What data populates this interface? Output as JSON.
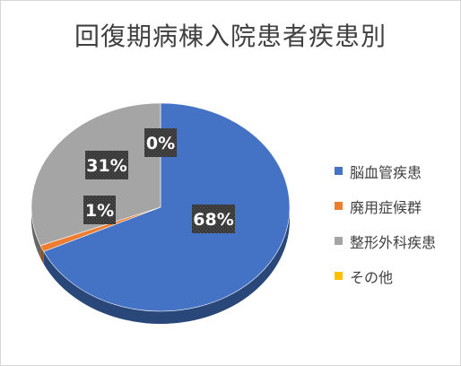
{
  "chart_data": {
    "type": "pie",
    "title": "回復期病棟入院患者疾患別",
    "categories": [
      "脳血管疾患",
      "廃用症候群",
      "整形外科疾患",
      "その他"
    ],
    "values": [
      68,
      1,
      31,
      0
    ],
    "data_labels": [
      "68%",
      "1%",
      "31%",
      "0%"
    ],
    "colors": [
      "#4472c4",
      "#ed7d31",
      "#a5a5a5",
      "#ffc000"
    ],
    "legend_position": "right",
    "style": "3d"
  }
}
